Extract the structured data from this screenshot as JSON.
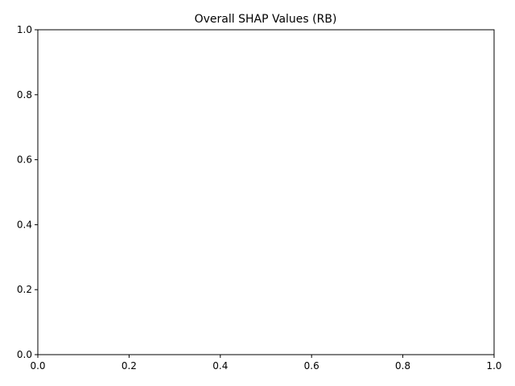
{
  "chart_data": {
    "type": "scatter",
    "title": "Overall SHAP Values (RB)",
    "xlabel": "",
    "ylabel": "",
    "xlim": [
      0.0,
      1.0
    ],
    "ylim": [
      0.0,
      1.0
    ],
    "x_ticks": [
      "0.0",
      "0.2",
      "0.4",
      "0.6",
      "0.8",
      "1.0"
    ],
    "y_ticks": [
      "0.0",
      "0.2",
      "0.4",
      "0.6",
      "0.8",
      "1.0"
    ],
    "series": [],
    "grid": false,
    "legend": "none"
  },
  "colors": {
    "axes": "#000000",
    "background": "#ffffff"
  }
}
